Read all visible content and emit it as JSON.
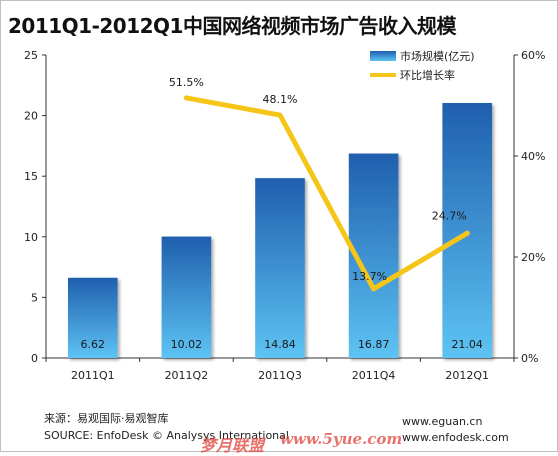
{
  "chart_data": {
    "type": "bar",
    "title": "2011Q1-2012Q1中国网络视频市场广告收入规模",
    "categories": [
      "2011Q1",
      "2011Q2",
      "2011Q3",
      "2011Q4",
      "2012Q1"
    ],
    "series": [
      {
        "name": "市场规模(亿元)",
        "type": "bar",
        "axis": "left",
        "values": [
          6.62,
          10.02,
          14.84,
          16.87,
          21.04
        ],
        "labels": [
          "6.62",
          "10.02",
          "14.84",
          "16.87",
          "21.04"
        ]
      },
      {
        "name": "环比增长率",
        "type": "line",
        "axis": "right",
        "values": [
          null,
          51.5,
          48.1,
          13.7,
          24.7
        ],
        "labels": [
          "",
          "51.5%",
          "48.1%",
          "13.7%",
          "24.7%"
        ]
      }
    ],
    "ylim_left": [
      0,
      25
    ],
    "yticks_left": [
      "0",
      "5",
      "10",
      "15",
      "20",
      "25"
    ],
    "ylim_right": [
      0,
      60
    ],
    "yticks_right": [
      "0%",
      "20%",
      "40%",
      "60%"
    ],
    "legend_position": "top-right",
    "grid": false,
    "colors": {
      "bar_top": "#1f5fae",
      "bar_bottom": "#5dc3f3",
      "line": "#f5c518"
    }
  },
  "footer": {
    "source_cn": "来源：易观国际·易观智库",
    "source_en": "SOURCE: EnfoDesk © Analysys International",
    "site1": "www.eguan.cn",
    "site2": "www.enfodesk.com",
    "watermark1": "梦月联盟",
    "watermark2": "www.5yue.com"
  }
}
